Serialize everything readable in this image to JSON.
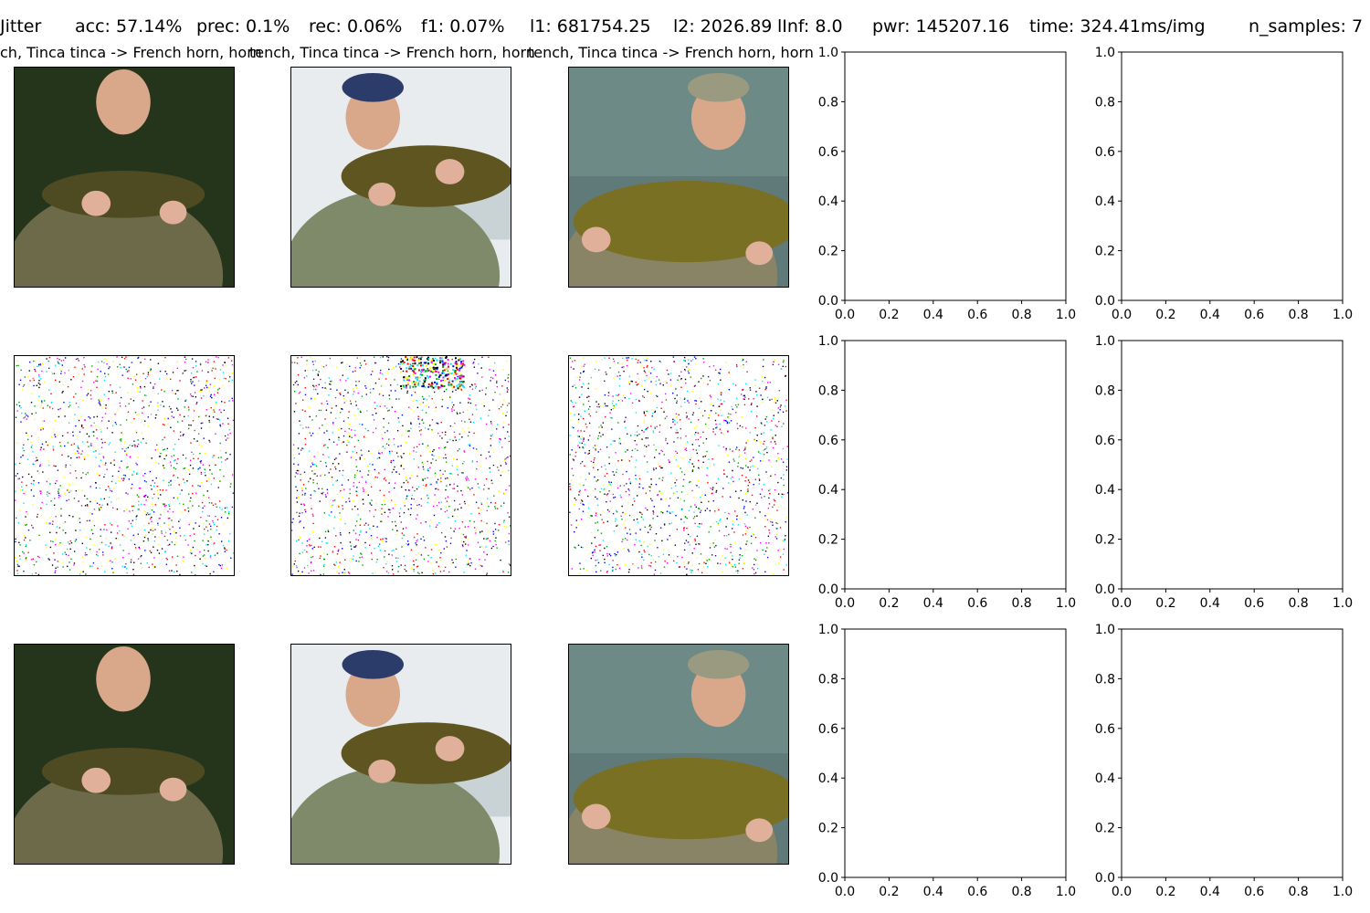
{
  "header": {
    "method": "Jitter",
    "acc": "acc: 57.14%",
    "prec": "prec: 0.1%",
    "rec": "rec: 0.06%",
    "f1": "f1: 0.07%",
    "l1": "l1: 681754.25",
    "l2": "l2: 2026.89",
    "linf": "lInf: 8.0",
    "pwr": "pwr: 145207.16",
    "time": "time: 324.41ms/img",
    "n_samples": "n_samples: 7"
  },
  "captions": [
    "ch, Tinca tinca -> French horn, horn",
    "tench, Tinca tinca -> French horn, horn",
    "tench, Tinca tinca -> French horn, horn"
  ],
  "images": {
    "rows": [
      "original",
      "perturbation",
      "adversarial"
    ],
    "original_palette": [
      "#2b3a1f",
      "#6b6a45",
      "#7d7440"
    ],
    "noise_colors": [
      "#ff00ff",
      "#00e5ff",
      "#ffff00",
      "#0000ff",
      "#00a000",
      "#ff0000",
      "#000000"
    ]
  },
  "chart_data": [
    {
      "type": "empty",
      "row": 1,
      "col": 4,
      "xlim": [
        0.0,
        1.0
      ],
      "ylim": [
        0.0,
        1.0
      ],
      "xticks": [
        "0.0",
        "0.2",
        "0.4",
        "0.6",
        "0.8",
        "1.0"
      ],
      "yticks": [
        "0.0",
        "0.2",
        "0.4",
        "0.6",
        "0.8",
        "1.0"
      ]
    },
    {
      "type": "empty",
      "row": 1,
      "col": 5,
      "xlim": [
        0.0,
        1.0
      ],
      "ylim": [
        0.0,
        1.0
      ],
      "xticks": [
        "0.0",
        "0.2",
        "0.4",
        "0.6",
        "0.8",
        "1.0"
      ],
      "yticks": [
        "0.0",
        "0.2",
        "0.4",
        "0.6",
        "0.8",
        "1.0"
      ]
    },
    {
      "type": "empty",
      "row": 2,
      "col": 4,
      "xlim": [
        0.0,
        1.0
      ],
      "ylim": [
        0.0,
        1.0
      ],
      "xticks": [
        "0.0",
        "0.2",
        "0.4",
        "0.6",
        "0.8",
        "1.0"
      ],
      "yticks": [
        "0.0",
        "0.2",
        "0.4",
        "0.6",
        "0.8",
        "1.0"
      ]
    },
    {
      "type": "empty",
      "row": 2,
      "col": 5,
      "xlim": [
        0.0,
        1.0
      ],
      "ylim": [
        0.0,
        1.0
      ],
      "xticks": [
        "0.0",
        "0.2",
        "0.4",
        "0.6",
        "0.8",
        "1.0"
      ],
      "yticks": [
        "0.0",
        "0.2",
        "0.4",
        "0.6",
        "0.8",
        "1.0"
      ]
    },
    {
      "type": "empty",
      "row": 3,
      "col": 4,
      "xlim": [
        0.0,
        1.0
      ],
      "ylim": [
        0.0,
        1.0
      ],
      "xticks": [
        "0.0",
        "0.2",
        "0.4",
        "0.6",
        "0.8",
        "1.0"
      ],
      "yticks": [
        "0.0",
        "0.2",
        "0.4",
        "0.6",
        "0.8",
        "1.0"
      ]
    },
    {
      "type": "empty",
      "row": 3,
      "col": 5,
      "xlim": [
        0.0,
        1.0
      ],
      "ylim": [
        0.0,
        1.0
      ],
      "xticks": [
        "0.0",
        "0.2",
        "0.4",
        "0.6",
        "0.8",
        "1.0"
      ],
      "yticks": [
        "0.0",
        "0.2",
        "0.4",
        "0.6",
        "0.8",
        "1.0"
      ]
    }
  ]
}
